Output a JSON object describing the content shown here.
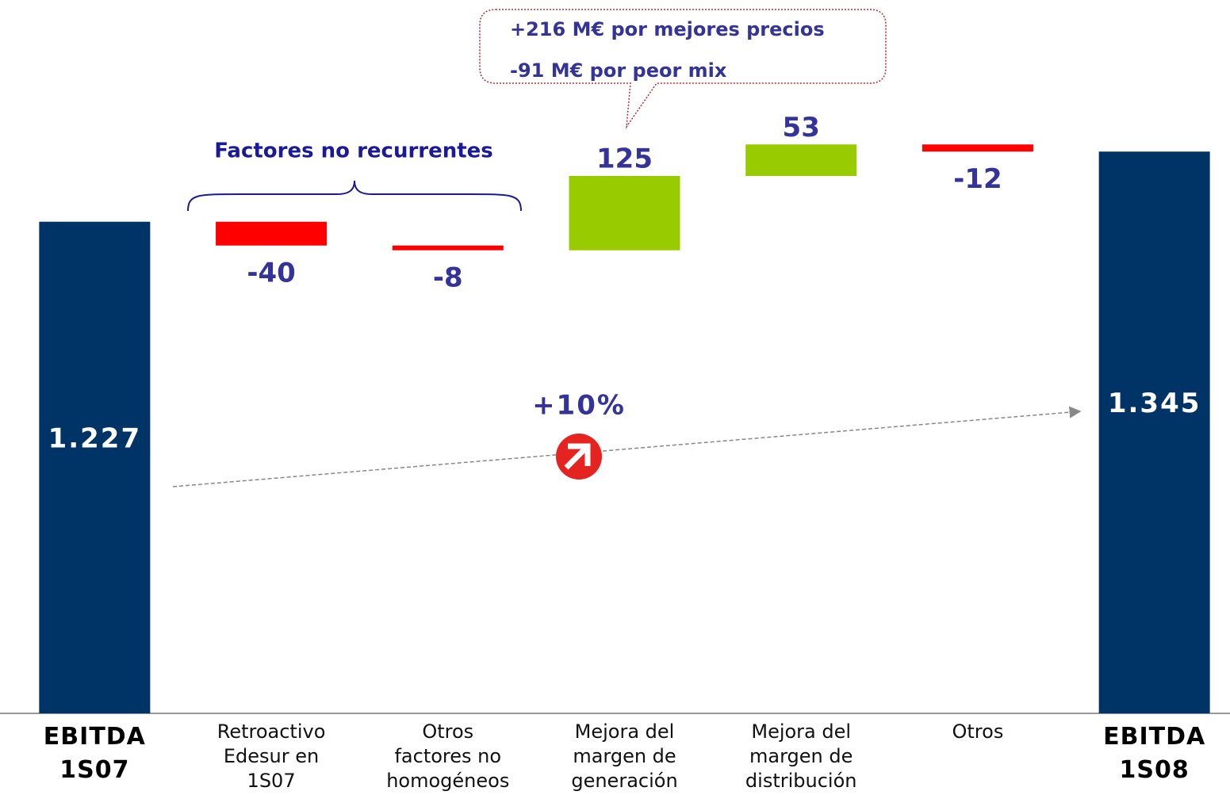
{
  "chart_data": {
    "type": "waterfall",
    "categories": [
      "EBITDA\n1S07",
      "Retroactivo\nEdesur en\n1S07",
      "Otros\nfactores no\nhomogéneos",
      "Mejora del\nmargen de\ngeneración",
      "Mejora del\nmargen de\ndistribución",
      "Otros",
      "EBITDA\n1S08"
    ],
    "measure": [
      "absolute",
      "relative",
      "relative",
      "relative",
      "relative",
      "relative",
      "total"
    ],
    "values": [
      1227,
      -40,
      -8,
      125,
      53,
      -12,
      1345
    ],
    "value_labels": [
      "1.227",
      "-40",
      "-8",
      "125",
      "53",
      "-12",
      "1.345"
    ],
    "colors": {
      "total": "#003366",
      "increase": "#99cc00",
      "decrease": "#ff0000"
    },
    "ylim": [
      400,
      1600
    ],
    "annotations": {
      "group": "Factores no recurrentes",
      "callout": [
        "+216 M€ por mejores precios",
        "-91 M€ por peor mix"
      ],
      "growth": "+10%"
    }
  }
}
